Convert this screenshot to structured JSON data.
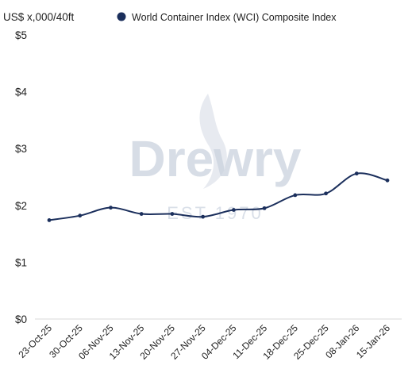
{
  "chart_data": {
    "type": "line",
    "y_unit_label": "US$ x,000/40ft",
    "ylim": [
      0,
      5
    ],
    "y_ticks": [
      0,
      1,
      2,
      3,
      4,
      5
    ],
    "y_tick_labels": [
      "$0",
      "$1",
      "$2",
      "$3",
      "$4",
      "$5"
    ],
    "categories": [
      "23-Oct-25",
      "30-Oct-25",
      "06-Nov-25",
      "13-Nov-25",
      "20-Nov-25",
      "27-Nov-25",
      "04-Dec-25",
      "11-Dec-25",
      "18-Dec-25",
      "25-Dec-25",
      "08-Jan-26",
      "15-Jan-26"
    ],
    "series": [
      {
        "name": "World Container Index (WCI) Composite Index",
        "color": "#1b2f5c",
        "values": [
          1.74,
          1.82,
          1.96,
          1.85,
          1.85,
          1.8,
          1.92,
          1.95,
          2.18,
          2.21,
          2.56,
          2.44
        ]
      }
    ],
    "legend_position": "top",
    "grid": false,
    "watermark": {
      "brand": "Drewry",
      "tagline": "EST 1970",
      "color": "#c9d1de"
    }
  }
}
